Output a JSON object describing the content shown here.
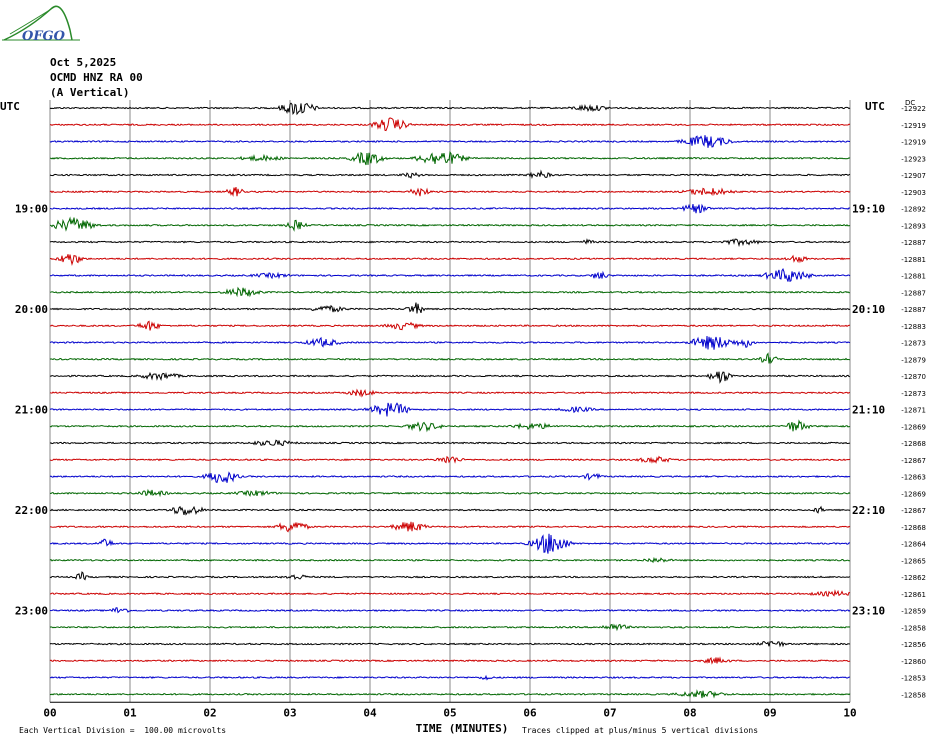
{
  "header": {
    "logo_text": "OFGO",
    "date": "Oct 5,2025",
    "station": "OCMD HNZ RA 00",
    "component": "(A Vertical)"
  },
  "colors": {
    "trace": [
      "#000000",
      "#cc0000",
      "#0000cc",
      "#006600"
    ],
    "grid": "#888888",
    "logo": "#2a8a2a"
  },
  "chart_data": {
    "type": "line",
    "title": "",
    "xlabel": "TIME (MINUTES)",
    "xlim": [
      0,
      10
    ],
    "x_ticks": [
      "00",
      "01",
      "02",
      "03",
      "04",
      "05",
      "06",
      "07",
      "08",
      "09",
      "10"
    ],
    "left_axis_title": "UTC",
    "right_axis_title": "UTC",
    "left_hour_labels": [
      "19:00",
      "20:00",
      "21:00",
      "22:00",
      "23:00"
    ],
    "right_hour_labels": [
      "19:10",
      "20:10",
      "21:10",
      "22:10",
      "23:10"
    ],
    "dc_title": "DC",
    "dc_offsets": [
      "-12922",
      "-12919",
      "-12919",
      "-12923",
      "-12907",
      "-12903",
      "-12892",
      "-12893",
      "-12887",
      "-12881",
      "-12881",
      "-12887",
      "-12887",
      "-12883",
      "-12873",
      "-12879",
      "-12870",
      "-12873",
      "-12871",
      "-12869",
      "-12868",
      "-12867",
      "-12863",
      "-12869",
      "-12867",
      "-12868",
      "-12864",
      "-12865",
      "-12862",
      "-12861",
      "-12859",
      "-12858",
      "-12856",
      "-12860",
      "-12853",
      "-12858"
    ],
    "minutes_per_trace": 10,
    "num_traces": 36
  },
  "footer": {
    "scale_note": "Each Vertical Division =  100.00 microvolts",
    "clip_note": "Traces clipped at plus/minus 5 vertical divisions"
  }
}
